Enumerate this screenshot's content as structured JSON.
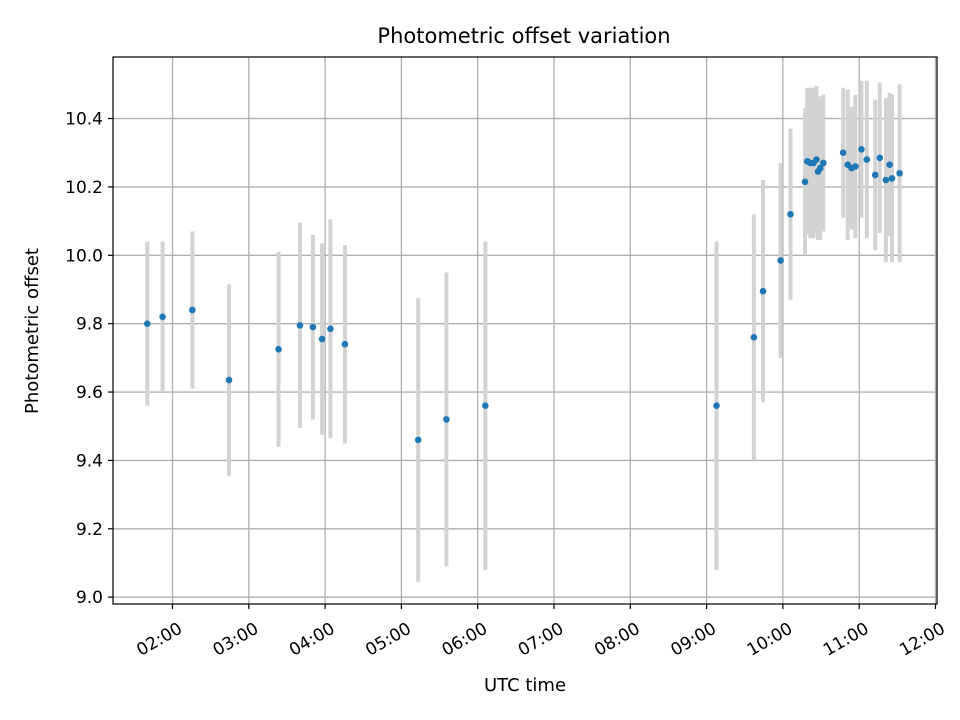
{
  "chart_data": {
    "type": "scatter",
    "title": "Photometric offset variation",
    "xlabel": "UTC time",
    "ylabel": "Photometric offset",
    "x_unit": "hours UTC",
    "xlim": [
      1.22,
      12.02
    ],
    "ylim": [
      8.98,
      10.58
    ],
    "xticks": [
      2,
      3,
      4,
      5,
      6,
      7,
      8,
      9,
      10,
      11,
      12
    ],
    "xtick_labels": [
      "02:00",
      "03:00",
      "04:00",
      "05:00",
      "06:00",
      "07:00",
      "08:00",
      "09:00",
      "10:00",
      "11:00",
      "12:00"
    ],
    "yticks": [
      9.0,
      9.2,
      9.4,
      9.6,
      9.8,
      10.0,
      10.2,
      10.4
    ],
    "ytick_labels": [
      "9.0",
      "9.2",
      "9.4",
      "9.6",
      "9.8",
      "10.0",
      "10.2",
      "10.4"
    ],
    "grid": true,
    "colors": {
      "point": "#1f77b4",
      "errorbar": "#d3d3d3",
      "grid": "#b0b0b0"
    },
    "series": [
      {
        "points": [
          {
            "x": 1.67,
            "y": 9.8,
            "err": 0.24
          },
          {
            "x": 1.87,
            "y": 9.82,
            "err": 0.22
          },
          {
            "x": 2.26,
            "y": 9.84,
            "err": 0.23
          },
          {
            "x": 2.74,
            "y": 9.635,
            "err": 0.28
          },
          {
            "x": 3.39,
            "y": 9.725,
            "err": 0.285
          },
          {
            "x": 3.67,
            "y": 9.795,
            "err": 0.3
          },
          {
            "x": 3.84,
            "y": 9.79,
            "err": 0.27
          },
          {
            "x": 3.96,
            "y": 9.755,
            "err": 0.28
          },
          {
            "x": 4.07,
            "y": 9.785,
            "err": 0.32
          },
          {
            "x": 4.26,
            "y": 9.74,
            "err": 0.29
          },
          {
            "x": 5.22,
            "y": 9.46,
            "err": 0.415
          },
          {
            "x": 5.59,
            "y": 9.52,
            "err": 0.43
          },
          {
            "x": 6.1,
            "y": 9.56,
            "err": 0.48
          },
          {
            "x": 9.13,
            "y": 9.56,
            "err": 0.48
          },
          {
            "x": 9.62,
            "y": 9.76,
            "err": 0.36
          },
          {
            "x": 9.74,
            "y": 9.895,
            "err": 0.325
          },
          {
            "x": 9.97,
            "y": 9.985,
            "err": 0.285
          },
          {
            "x": 10.1,
            "y": 10.12,
            "err": 0.25
          },
          {
            "x": 10.29,
            "y": 10.215,
            "err": 0.215
          },
          {
            "x": 10.32,
            "y": 10.275,
            "err": 0.215
          },
          {
            "x": 10.36,
            "y": 10.27,
            "err": 0.22
          },
          {
            "x": 10.4,
            "y": 10.27,
            "err": 0.22
          },
          {
            "x": 10.44,
            "y": 10.28,
            "err": 0.215
          },
          {
            "x": 10.46,
            "y": 10.245,
            "err": 0.2
          },
          {
            "x": 10.49,
            "y": 10.255,
            "err": 0.21
          },
          {
            "x": 10.53,
            "y": 10.27,
            "err": 0.2
          },
          {
            "x": 10.79,
            "y": 10.3,
            "err": 0.19
          },
          {
            "x": 10.85,
            "y": 10.265,
            "err": 0.22
          },
          {
            "x": 10.9,
            "y": 10.255,
            "err": 0.18
          },
          {
            "x": 10.95,
            "y": 10.26,
            "err": 0.21
          },
          {
            "x": 11.03,
            "y": 10.31,
            "err": 0.2
          },
          {
            "x": 11.1,
            "y": 10.28,
            "err": 0.23
          },
          {
            "x": 11.21,
            "y": 10.235,
            "err": 0.22
          },
          {
            "x": 11.27,
            "y": 10.285,
            "err": 0.22
          },
          {
            "x": 11.35,
            "y": 10.22,
            "err": 0.24
          },
          {
            "x": 11.4,
            "y": 10.265,
            "err": 0.21
          },
          {
            "x": 11.43,
            "y": 10.225,
            "err": 0.245
          },
          {
            "x": 11.53,
            "y": 10.24,
            "err": 0.26
          }
        ]
      }
    ]
  }
}
